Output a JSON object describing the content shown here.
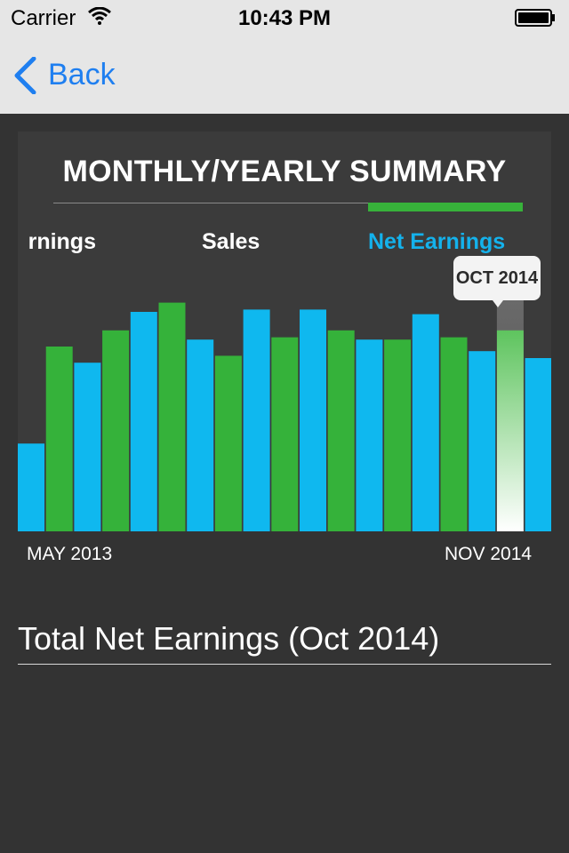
{
  "status_bar": {
    "carrier": "Carrier",
    "time": "10:43 PM",
    "icons": [
      "wifi-icon",
      "battery-icon"
    ]
  },
  "nav": {
    "back_label": "Back",
    "back_icon": "chevron-left-icon",
    "accent": "#1f7ff0"
  },
  "summary": {
    "title": "MONTHLY/YEARLY SUMMARY",
    "tabs": [
      {
        "label": "rnings",
        "selected": false
      },
      {
        "label": "Sales",
        "selected": false
      },
      {
        "label": "Net Earnings",
        "selected": true
      }
    ],
    "tooltip": "OCT 2014",
    "start_label": "MAY 2013",
    "end_label": "NOV 2014"
  },
  "chart_data": {
    "type": "bar",
    "selected_index": 17,
    "values": [
      38,
      80,
      73,
      87,
      95,
      99,
      83,
      76,
      96,
      84,
      96,
      87,
      83,
      83,
      94,
      84,
      78,
      87,
      75
    ],
    "series_colors": [
      "#0fb8ef",
      "#35b23a"
    ],
    "highlight_color": "#5ec45e"
  },
  "total": {
    "label": "Total Net Earnings (Oct 2014)"
  }
}
